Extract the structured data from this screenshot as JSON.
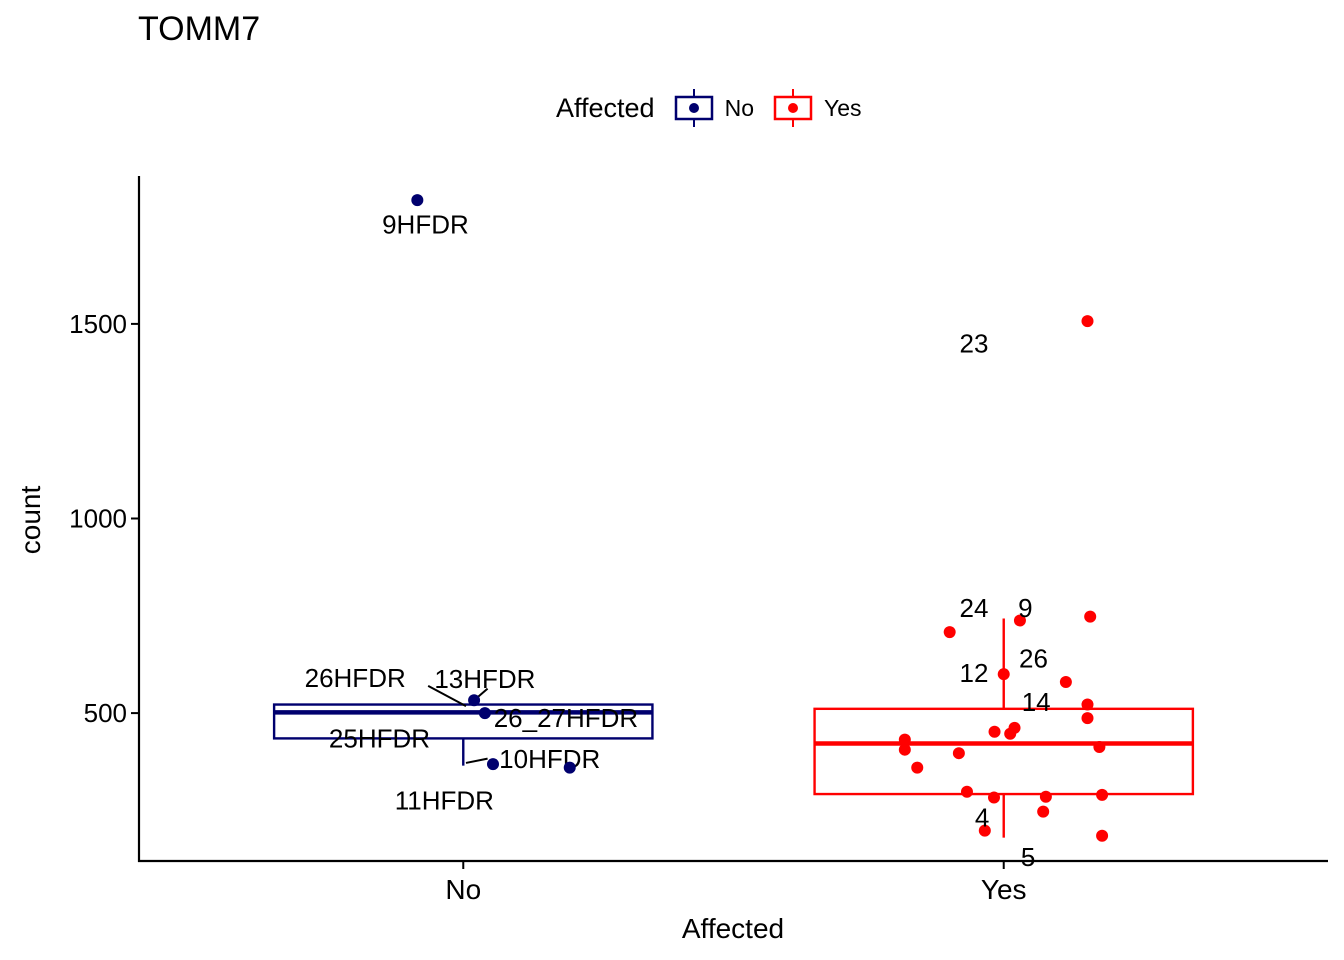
{
  "chart_data": {
    "type": "boxplot",
    "title": "TOMM7",
    "xlabel": "Affected",
    "ylabel": "count",
    "categories": [
      "No",
      "Yes"
    ],
    "ylim": [
      120,
      1880
    ],
    "yticks": [
      500,
      1000,
      1500
    ],
    "grid": false,
    "legend": {
      "title": "Affected",
      "placement": "top",
      "entries": [
        {
          "name": "No",
          "color": "#00006e"
        },
        {
          "name": "Yes",
          "color": "#ff0000"
        }
      ]
    },
    "boxes": [
      {
        "category": "No",
        "color": "#00006e",
        "whisker_low": 365,
        "q1": 435,
        "median": 502,
        "q3": 522,
        "whisker_high": 522
      },
      {
        "category": "Yes",
        "color": "#ff0000",
        "whisker_low": 180,
        "q1": 292,
        "median": 422,
        "q3": 511,
        "whisker_high": 743
      }
    ],
    "points": [
      {
        "category": "No",
        "dx": -0.085,
        "y": 1818,
        "label": "9HFDR",
        "lx": -0.07,
        "ly": 1755
      },
      {
        "category": "No",
        "dx": 0.02,
        "y": 533,
        "label": "13HFDR",
        "lx": 0.04,
        "ly": 587
      },
      {
        "category": "No",
        "dx": 0.04,
        "y": 500,
        "label": "26_27HFDR",
        "lx": 0.19,
        "ly": 488
      },
      {
        "category": "No",
        "dx": 0.055,
        "y": 369,
        "label": "10HFDR",
        "lx": 0.16,
        "ly": 382
      },
      {
        "category": "No",
        "dx": 0.197,
        "y": 360,
        "label": "",
        "lx": 0,
        "ly": 0
      },
      {
        "category": "No",
        "dx": 0,
        "y": 520,
        "label": "26HFDR",
        "lx": -0.2,
        "ly": 590
      },
      {
        "category": "No",
        "dx": 0,
        "y": 450,
        "label": "25HFDR",
        "lx": -0.155,
        "ly": 435
      },
      {
        "category": "No",
        "dx": 0,
        "y": 370,
        "label": "11HFDR",
        "lx": -0.035,
        "ly": 275
      },
      {
        "category": "Yes",
        "dx": 0.155,
        "y": 1507,
        "label": "23",
        "lx": -0.055,
        "ly": 1450
      },
      {
        "category": "Yes",
        "dx": -0.1,
        "y": 708,
        "label": "24",
        "lx": -0.055,
        "ly": 770
      },
      {
        "category": "Yes",
        "dx": 0.03,
        "y": 738,
        "label": "9",
        "lx": 0.04,
        "ly": 770
      },
      {
        "category": "Yes",
        "dx": 0.16,
        "y": 748,
        "label": "",
        "lx": 0,
        "ly": 0
      },
      {
        "category": "Yes",
        "dx": 0.115,
        "y": 580,
        "label": "26",
        "lx": 0.055,
        "ly": 640
      },
      {
        "category": "Yes",
        "dx": 0.155,
        "y": 522,
        "label": "",
        "lx": 0,
        "ly": 0
      },
      {
        "category": "Yes",
        "dx": 0.155,
        "y": 487,
        "label": "",
        "lx": 0,
        "ly": 0
      },
      {
        "category": "Yes",
        "dx": 0.0,
        "y": 600,
        "label": "12",
        "lx": -0.055,
        "ly": 603
      },
      {
        "category": "Yes",
        "dx": 0.02,
        "y": 462,
        "label": "14",
        "lx": 0.06,
        "ly": 528
      },
      {
        "category": "Yes",
        "dx": 0.012,
        "y": 447,
        "label": "",
        "lx": 0,
        "ly": 0
      },
      {
        "category": "Yes",
        "dx": -0.017,
        "y": 452,
        "label": "",
        "lx": 0,
        "ly": 0
      },
      {
        "category": "Yes",
        "dx": -0.183,
        "y": 432,
        "label": "",
        "lx": 0,
        "ly": 0
      },
      {
        "category": "Yes",
        "dx": -0.183,
        "y": 406,
        "label": "",
        "lx": 0,
        "ly": 0
      },
      {
        "category": "Yes",
        "dx": -0.083,
        "y": 397,
        "label": "",
        "lx": 0,
        "ly": 0
      },
      {
        "category": "Yes",
        "dx": 0.177,
        "y": 413,
        "label": "",
        "lx": 0,
        "ly": 0
      },
      {
        "category": "Yes",
        "dx": -0.16,
        "y": 360,
        "label": "",
        "lx": 0,
        "ly": 0
      },
      {
        "category": "Yes",
        "dx": -0.068,
        "y": 298,
        "label": "",
        "lx": 0,
        "ly": 0
      },
      {
        "category": "Yes",
        "dx": -0.018,
        "y": 283,
        "label": "",
        "lx": 0,
        "ly": 0
      },
      {
        "category": "Yes",
        "dx": 0.078,
        "y": 285,
        "label": "",
        "lx": 0,
        "ly": 0
      },
      {
        "category": "Yes",
        "dx": 0.182,
        "y": 290,
        "label": "",
        "lx": 0,
        "ly": 0
      },
      {
        "category": "Yes",
        "dx": 0.073,
        "y": 247,
        "label": "",
        "lx": 0,
        "ly": 0
      },
      {
        "category": "Yes",
        "dx": -0.035,
        "y": 198,
        "label": "4",
        "lx": -0.04,
        "ly": 232
      },
      {
        "category": "Yes",
        "dx": 0.182,
        "y": 185,
        "label": "5",
        "lx": 0.045,
        "ly": 130
      }
    ],
    "connectors": [
      {
        "category": "No",
        "x1": -0.065,
        "y1": 570,
        "x2": 0.005,
        "y2": 518
      },
      {
        "category": "No",
        "x1": 0.045,
        "y1": 563,
        "x2": 0.02,
        "y2": 533
      },
      {
        "category": "No",
        "x1": 0.005,
        "y1": 372,
        "x2": 0.045,
        "y2": 383
      }
    ]
  }
}
